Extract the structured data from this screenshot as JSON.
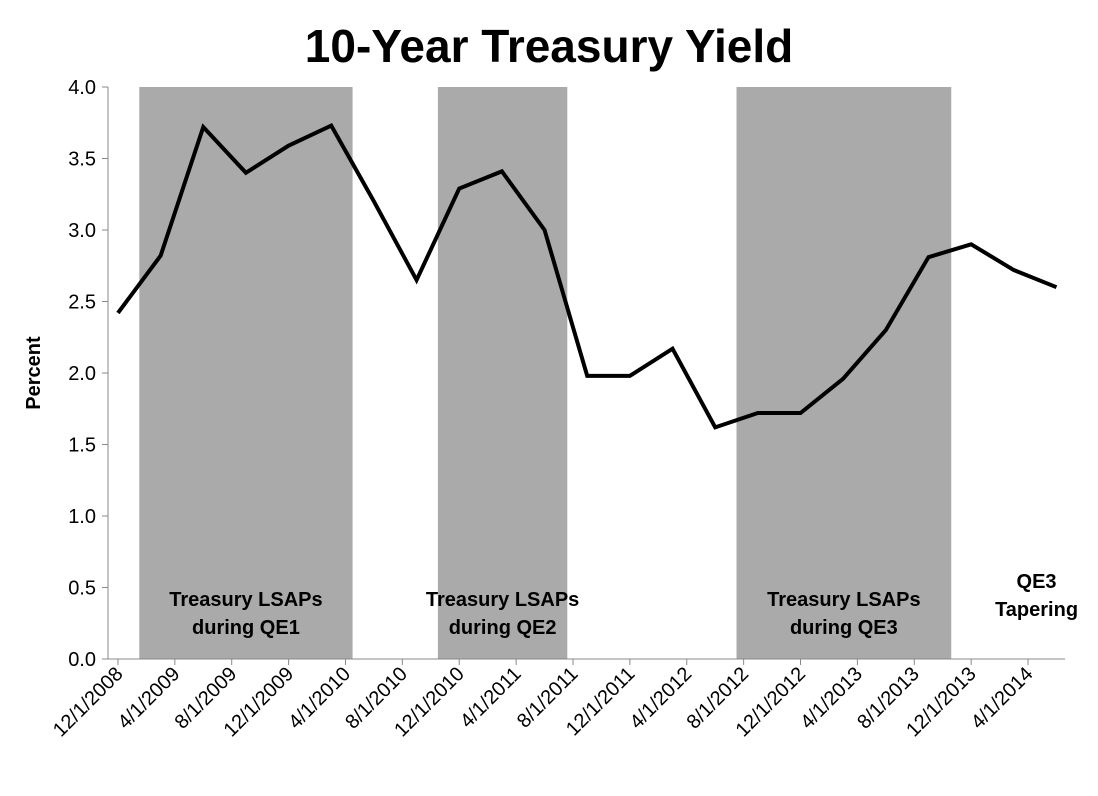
{
  "chart_data": {
    "type": "line",
    "title": "10-Year Treasury Yield",
    "y_label": "Percent",
    "xlim": [
      -0.7,
      66.6
    ],
    "xticks": [
      {
        "value": 0,
        "label": "12/1/2008"
      },
      {
        "value": 4,
        "label": "4/1/2009"
      },
      {
        "value": 8,
        "label": "8/1/2009"
      },
      {
        "value": 12,
        "label": "12/1/2009"
      },
      {
        "value": 16,
        "label": "4/1/2010"
      },
      {
        "value": 20,
        "label": "8/1/2010"
      },
      {
        "value": 24,
        "label": "12/1/2010"
      },
      {
        "value": 28,
        "label": "4/1/2011"
      },
      {
        "value": 32,
        "label": "8/1/2011"
      },
      {
        "value": 36,
        "label": "12/1/2011"
      },
      {
        "value": 40,
        "label": "4/1/2012"
      },
      {
        "value": 44,
        "label": "8/1/2012"
      },
      {
        "value": 48,
        "label": "12/1/2012"
      },
      {
        "value": 52,
        "label": "4/1/2013"
      },
      {
        "value": 56,
        "label": "8/1/2013"
      },
      {
        "value": 60,
        "label": "12/1/2013"
      },
      {
        "value": 64,
        "label": "4/1/2014"
      }
    ],
    "ylim": [
      0,
      4
    ],
    "yticks": [
      {
        "value": 0,
        "label": "0.0"
      },
      {
        "value": 0.5,
        "label": "0.5"
      },
      {
        "value": 1,
        "label": "1.0"
      },
      {
        "value": 1.5,
        "label": "1.5"
      },
      {
        "value": 2,
        "label": "2.0"
      },
      {
        "value": 2.5,
        "label": "2.5"
      },
      {
        "value": 3,
        "label": "3.0"
      },
      {
        "value": 3.5,
        "label": "3.5"
      },
      {
        "value": 4,
        "label": "4.0"
      }
    ],
    "series": [
      {
        "name": "10-Year Treasury Yield",
        "color": "#000000",
        "x": [
          0,
          3,
          6,
          9,
          12,
          15,
          18,
          21,
          24,
          27,
          30,
          33,
          36,
          39,
          42,
          45,
          48,
          51,
          54,
          57,
          60,
          63,
          66
        ],
        "values": [
          2.42,
          2.82,
          3.72,
          3.4,
          3.59,
          3.73,
          3.2,
          2.65,
          3.29,
          3.41,
          3.0,
          1.98,
          1.98,
          2.17,
          1.62,
          1.72,
          1.72,
          1.96,
          2.3,
          2.81,
          2.9,
          2.72,
          2.6
        ]
      }
    ],
    "shaded_color": "#aaaaaa",
    "shaded": [
      {
        "start": 1.5,
        "end": 16.5,
        "label": [
          "Treasury LSAPs",
          "during QE1"
        ]
      },
      {
        "start": 22.5,
        "end": 31.6,
        "label": [
          "Treasury LSAPs",
          "during QE2"
        ]
      },
      {
        "start": 43.5,
        "end": 58.6,
        "label": [
          "Treasury LSAPs",
          "during QE3"
        ]
      }
    ],
    "annotations": [
      {
        "x": 64.6,
        "label": [
          "QE3",
          "Tapering"
        ]
      }
    ]
  }
}
